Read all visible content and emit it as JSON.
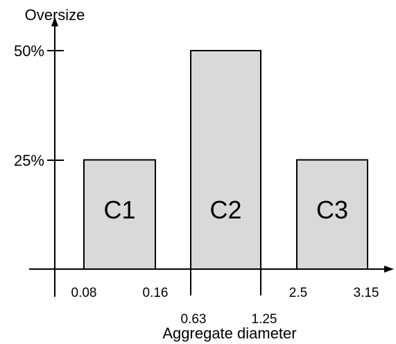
{
  "chart_data": {
    "type": "bar",
    "ylabel": "Oversize",
    "xlabel": "Aggregate diameter",
    "bars": [
      {
        "label": "C1",
        "x_from": "0.08",
        "x_to": "0.16",
        "value": 25
      },
      {
        "label": "C2",
        "x_from": "0.63",
        "x_to": "1.25",
        "value": 50
      },
      {
        "label": "C3",
        "x_from": "2.5",
        "x_to": "3.15",
        "value": 25
      }
    ],
    "y_ticks": [
      "25%",
      "50%"
    ],
    "x_ticks": [
      "0.08",
      "0.16",
      "0.63",
      "1.25",
      "2.5",
      "3.15"
    ],
    "ylim": [
      0,
      50
    ],
    "grid": false,
    "colors": {
      "bar_fill": "#d9d9d9",
      "stroke": "#000000"
    }
  }
}
